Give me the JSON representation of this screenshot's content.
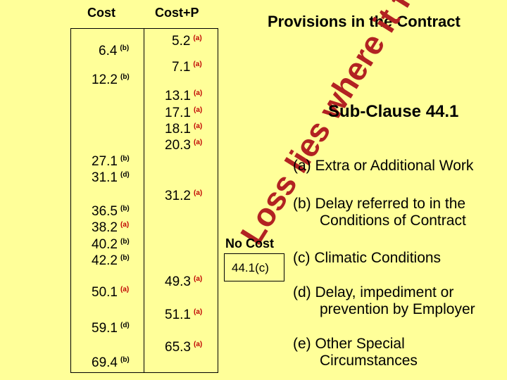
{
  "headers": {
    "cost": "Cost",
    "cost_p": "Cost+P"
  },
  "cost_column": [
    {
      "ref": "6.4",
      "tag": "(b)",
      "cls": "b"
    },
    {
      "ref": "12.2",
      "tag": "(b)",
      "cls": "b"
    },
    {
      "ref": "27.1",
      "tag": "(b)",
      "cls": "b"
    },
    {
      "ref": "31.1",
      "tag": "(d)",
      "cls": "d"
    },
    {
      "ref": "36.5",
      "tag": "(b)",
      "cls": "b"
    },
    {
      "ref": "38.2",
      "tag": "(a)",
      "cls": "a"
    },
    {
      "ref": "40.2",
      "tag": "(b)",
      "cls": "b"
    },
    {
      "ref": "42.2",
      "tag": "(b)",
      "cls": "b"
    },
    {
      "ref": "50.1",
      "tag": "(a)",
      "cls": "a"
    },
    {
      "ref": "59.1",
      "tag": "(d)",
      "cls": "d"
    },
    {
      "ref": "69.4",
      "tag": "(b)",
      "cls": "b"
    }
  ],
  "cost_p_column": [
    {
      "ref": "5.2",
      "tag": "(a)",
      "cls": "a"
    },
    {
      "ref": "7.1",
      "tag": "(a)",
      "cls": "a"
    },
    {
      "ref": "13.1",
      "tag": "(a)",
      "cls": "a"
    },
    {
      "ref": "17.1",
      "tag": "(a)",
      "cls": "a"
    },
    {
      "ref": "18.1",
      "tag": "(a)",
      "cls": "a"
    },
    {
      "ref": "20.3",
      "tag": "(a)",
      "cls": "a"
    },
    {
      "ref": "31.2",
      "tag": "(a)",
      "cls": "a"
    },
    {
      "ref": "49.3",
      "tag": "(a)",
      "cls": "a"
    },
    {
      "ref": "51.1",
      "tag": "(a)",
      "cls": "a"
    },
    {
      "ref": "65.3",
      "tag": "(a)",
      "cls": "a"
    }
  ],
  "title": "Provisions in the Contract",
  "diagonal_text": "Loss lies where it falls",
  "sub_clause": "Sub-Clause 44.1",
  "no_cost": "No Cost",
  "no_cost_ref": "44.1(c)",
  "provisions": [
    {
      "line1": "(a) Extra or Additional Work",
      "line2": ""
    },
    {
      "line1": "(b) Delay referred to in the",
      "line2": "Conditions of Contract"
    },
    {
      "line1": "(c) Climatic Conditions",
      "line2": ""
    },
    {
      "line1": "(d) Delay, impediment or",
      "line2": "prevention by Employer"
    },
    {
      "line1": "(e) Other Special",
      "line2": "Circumstances"
    }
  ],
  "colors": {
    "background": "#ffff99",
    "accent": "#b22222",
    "tag_a": "#c00000"
  }
}
